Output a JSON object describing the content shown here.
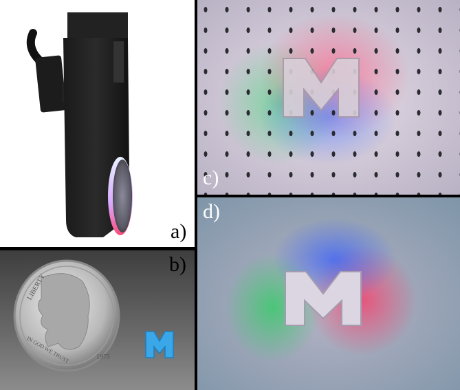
{
  "figure": {
    "panels": [
      {
        "id": "a",
        "label": "a)",
        "description_icon": "tactile-sensor-device"
      },
      {
        "id": "b",
        "label": "b)",
        "description_icon": "coin-size-comparison"
      },
      {
        "id": "c",
        "label": "c)",
        "description_icon": "marker-pattern-imprint"
      },
      {
        "id": "d",
        "label": "d)",
        "description_icon": "rgb-lit-imprint"
      }
    ],
    "coin_text": {
      "liberty": "LIBERTY",
      "motto": "IN GOD WE TRUST",
      "year": "1975"
    },
    "colors": {
      "red_light": "#ff3b6a",
      "green_light": "#2fd36b",
      "blue_light": "#3a6bff",
      "object_blue": "#3aa7e8"
    }
  }
}
